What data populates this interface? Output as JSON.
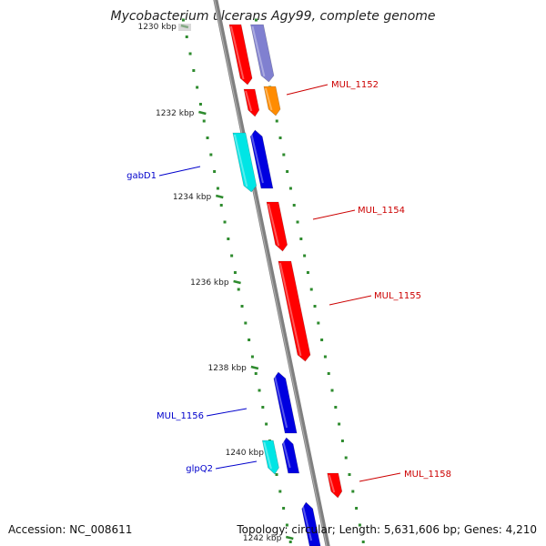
{
  "title": "Mycobacterium ulcerans Agy99, complete genome",
  "footer": {
    "accession": "Accession: NC_008611",
    "summary": "Topology: circular; Length: 5,631,606 bp; Genes: 4,210"
  },
  "colors": {
    "backbone": "#808080",
    "tick": "#2e8b2e",
    "red_gene": "#ff0000",
    "blue_gene": "#0000e0",
    "cyan_gene": "#00e5e5",
    "orange_gene": "#ff8c00",
    "lavender_gene": "#8080d0",
    "red_label": "#cc0000",
    "blue_label": "#0000cc"
  },
  "tick_labels": [
    "1230 kbp",
    "1232 kbp",
    "1234 kbp",
    "1236 kbp",
    "1238 kbp",
    "1240 kbp",
    "1242 kbp"
  ],
  "gene_labels": [
    {
      "text": "MUL_1152",
      "strand": "right"
    },
    {
      "text": "gabD1",
      "strand": "left"
    },
    {
      "text": "MUL_1154",
      "strand": "right"
    },
    {
      "text": "MUL_1155",
      "strand": "right"
    },
    {
      "text": "MUL_1156",
      "strand": "left"
    },
    {
      "text": "glpQ2",
      "strand": "left"
    },
    {
      "text": "MUL_1158",
      "strand": "right"
    }
  ]
}
